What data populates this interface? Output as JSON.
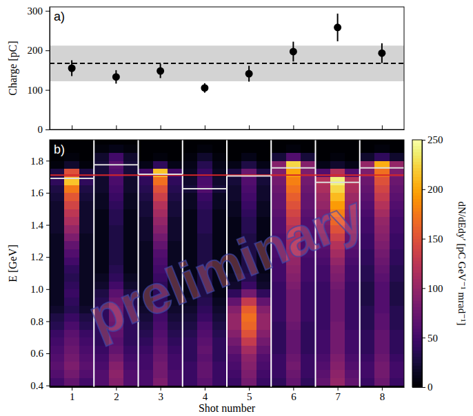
{
  "chart_data": [
    {
      "type": "scatter",
      "panel_label": "a)",
      "x": [
        1,
        2,
        3,
        4,
        5,
        6,
        7,
        8
      ],
      "values": [
        155,
        133,
        148,
        105,
        141,
        197,
        258,
        193
      ],
      "errors": [
        20,
        17,
        18,
        12,
        20,
        25,
        35,
        25
      ],
      "color": "#000000",
      "marker": "circle",
      "mean": 167,
      "band": [
        122,
        212
      ],
      "xlim": [
        0.5,
        8.5
      ],
      "xticks": [
        1,
        2,
        3,
        4,
        5,
        6,
        7,
        8
      ],
      "ylim": [
        0,
        310
      ],
      "yticks": [
        0,
        100,
        200,
        300
      ],
      "ylabel": "Charge [pC]",
      "tick_labels": "y"
    },
    {
      "type": "heatmap",
      "panel_label": "b)",
      "xlim": [
        0.5,
        8.5
      ],
      "xticks": [
        1,
        2,
        3,
        4,
        5,
        6,
        7,
        8
      ],
      "ylim": [
        0.39,
        1.93
      ],
      "yticks": [
        0.4,
        0.6,
        0.8,
        {
          "value": 1,
          "label": "1.0"
        },
        1.2,
        1.4,
        1.6,
        1.8
      ],
      "xlabel": "Shot number",
      "ylabel": "E [GeV]",
      "cells": {
        "x_edges": [
          0.5,
          0.833,
          1.167,
          1.5,
          1.833,
          2.167,
          2.5,
          2.833,
          3.167,
          3.5,
          3.833,
          4.167,
          4.5,
          4.833,
          5.167,
          5.5,
          5.833,
          6.167,
          6.5,
          6.833,
          7.167,
          7.5,
          7.833,
          8.167,
          8.5
        ],
        "y_edges": [
          0.4,
          0.45,
          0.5,
          0.55,
          0.6,
          0.65,
          0.7,
          0.75,
          0.8,
          0.85,
          0.9,
          0.95,
          1.0,
          1.05,
          1.1,
          1.15,
          1.2,
          1.25,
          1.3,
          1.35,
          1.4,
          1.45,
          1.5,
          1.55,
          1.6,
          1.65,
          1.7,
          1.75,
          1.8,
          1.85,
          1.9
        ],
        "z": [
          [
            50,
            60,
            65,
            60,
            55,
            50,
            45,
            35,
            30,
            20,
            15,
            15,
            15,
            15,
            15,
            15,
            15,
            15,
            15,
            20,
            20,
            20,
            20,
            25,
            30,
            40,
            30,
            5,
            0,
            0
          ],
          [
            70,
            80,
            85,
            80,
            75,
            70,
            65,
            55,
            45,
            35,
            40,
            45,
            40,
            35,
            40,
            50,
            60,
            70,
            85,
            100,
            115,
            125,
            140,
            155,
            175,
            215,
            150,
            20,
            5,
            0
          ],
          [
            50,
            60,
            65,
            60,
            55,
            50,
            45,
            35,
            30,
            20,
            15,
            15,
            15,
            15,
            15,
            15,
            15,
            15,
            15,
            20,
            20,
            20,
            20,
            25,
            30,
            40,
            30,
            5,
            0,
            0
          ],
          [
            60,
            60,
            55,
            50,
            45,
            40,
            40,
            40,
            40,
            40,
            35,
            30,
            20,
            15,
            10,
            10,
            10,
            10,
            10,
            10,
            10,
            10,
            15,
            15,
            20,
            20,
            25,
            25,
            20,
            5
          ],
          [
            90,
            95,
            90,
            80,
            70,
            65,
            70,
            75,
            80,
            80,
            75,
            65,
            50,
            40,
            35,
            30,
            30,
            30,
            30,
            30,
            35,
            35,
            40,
            45,
            50,
            55,
            60,
            65,
            50,
            10
          ],
          [
            60,
            60,
            55,
            50,
            45,
            40,
            40,
            40,
            40,
            40,
            35,
            30,
            20,
            15,
            10,
            10,
            10,
            10,
            10,
            10,
            10,
            10,
            15,
            15,
            20,
            20,
            25,
            25,
            20,
            5
          ],
          [
            55,
            55,
            50,
            50,
            45,
            40,
            35,
            30,
            25,
            20,
            15,
            15,
            15,
            15,
            15,
            15,
            15,
            15,
            20,
            20,
            20,
            25,
            25,
            30,
            35,
            40,
            50,
            10,
            0,
            0
          ],
          [
            85,
            80,
            80,
            75,
            70,
            65,
            60,
            55,
            50,
            45,
            40,
            40,
            40,
            45,
            50,
            55,
            60,
            70,
            80,
            90,
            100,
            110,
            120,
            135,
            150,
            170,
            215,
            40,
            5,
            0
          ],
          [
            55,
            55,
            50,
            50,
            45,
            40,
            35,
            30,
            25,
            20,
            15,
            15,
            15,
            15,
            15,
            15,
            15,
            15,
            20,
            20,
            20,
            25,
            25,
            30,
            35,
            40,
            50,
            10,
            0,
            0
          ],
          [
            45,
            45,
            45,
            40,
            40,
            40,
            35,
            30,
            25,
            20,
            15,
            10,
            10,
            10,
            10,
            10,
            10,
            10,
            10,
            10,
            10,
            10,
            15,
            15,
            25,
            20,
            15,
            10,
            5,
            0
          ],
          [
            65,
            70,
            70,
            65,
            70,
            65,
            60,
            55,
            45,
            40,
            35,
            30,
            30,
            30,
            30,
            30,
            30,
            30,
            30,
            35,
            35,
            35,
            40,
            45,
            60,
            55,
            45,
            35,
            20,
            5
          ],
          [
            45,
            45,
            45,
            40,
            40,
            40,
            35,
            30,
            25,
            20,
            15,
            10,
            10,
            10,
            10,
            10,
            10,
            10,
            10,
            10,
            10,
            10,
            15,
            15,
            25,
            20,
            15,
            10,
            5,
            0
          ],
          [
            45,
            50,
            55,
            60,
            70,
            80,
            90,
            100,
            100,
            90,
            70,
            40,
            20,
            15,
            10,
            10,
            10,
            10,
            10,
            10,
            10,
            15,
            15,
            20,
            20,
            25,
            30,
            10,
            0,
            0
          ],
          [
            80,
            85,
            90,
            95,
            110,
            130,
            150,
            165,
            170,
            160,
            130,
            80,
            45,
            35,
            30,
            30,
            30,
            30,
            30,
            35,
            35,
            40,
            45,
            50,
            55,
            60,
            75,
            30,
            10,
            0
          ],
          [
            45,
            50,
            55,
            60,
            70,
            80,
            90,
            100,
            100,
            90,
            70,
            40,
            20,
            15,
            10,
            10,
            10,
            10,
            10,
            10,
            10,
            15,
            15,
            20,
            20,
            25,
            30,
            10,
            0,
            0
          ],
          [
            40,
            45,
            45,
            45,
            40,
            40,
            40,
            40,
            45,
            45,
            45,
            45,
            45,
            50,
            50,
            50,
            55,
            55,
            55,
            60,
            60,
            65,
            70,
            70,
            75,
            80,
            85,
            90,
            25,
            0
          ],
          [
            70,
            75,
            80,
            75,
            70,
            70,
            70,
            75,
            80,
            80,
            80,
            80,
            85,
            90,
            95,
            100,
            105,
            110,
            115,
            120,
            130,
            140,
            150,
            160,
            170,
            180,
            200,
            225,
            60,
            5
          ],
          [
            40,
            45,
            45,
            45,
            40,
            40,
            40,
            40,
            45,
            45,
            45,
            45,
            45,
            50,
            50,
            50,
            55,
            55,
            55,
            60,
            60,
            65,
            70,
            70,
            75,
            80,
            85,
            90,
            25,
            0
          ],
          [
            70,
            65,
            60,
            55,
            50,
            50,
            50,
            45,
            45,
            45,
            45,
            45,
            45,
            50,
            50,
            55,
            60,
            65,
            70,
            80,
            85,
            90,
            100,
            105,
            115,
            120,
            60,
            10,
            0,
            0
          ],
          [
            100,
            95,
            90,
            85,
            80,
            80,
            80,
            80,
            75,
            75,
            75,
            75,
            80,
            85,
            90,
            100,
            110,
            120,
            135,
            150,
            165,
            180,
            195,
            210,
            225,
            240,
            120,
            20,
            5,
            0
          ],
          [
            70,
            65,
            60,
            55,
            50,
            50,
            50,
            45,
            45,
            45,
            45,
            45,
            45,
            50,
            50,
            55,
            60,
            65,
            70,
            80,
            85,
            90,
            100,
            105,
            115,
            120,
            60,
            10,
            0,
            0
          ],
          [
            45,
            50,
            50,
            45,
            40,
            40,
            40,
            35,
            35,
            35,
            30,
            30,
            30,
            35,
            35,
            40,
            40,
            45,
            45,
            50,
            50,
            55,
            60,
            65,
            70,
            75,
            85,
            100,
            20,
            0
          ],
          [
            75,
            80,
            80,
            75,
            70,
            70,
            70,
            65,
            65,
            60,
            60,
            60,
            60,
            65,
            70,
            75,
            80,
            85,
            90,
            95,
            100,
            110,
            120,
            130,
            140,
            150,
            170,
            205,
            40,
            5
          ],
          [
            45,
            50,
            50,
            45,
            40,
            40,
            40,
            35,
            35,
            35,
            30,
            30,
            30,
            35,
            35,
            40,
            40,
            45,
            45,
            50,
            50,
            55,
            60,
            65,
            70,
            75,
            85,
            100,
            20,
            0
          ]
        ]
      },
      "colorbar": {
        "lim": [
          0,
          250
        ],
        "ticks": [
          0,
          50,
          100,
          150,
          200,
          250
        ],
        "label": "dN/dEdy′ [pC GeV⁻¹ mrad⁻¹]"
      },
      "separators": [
        1.5,
        2.5,
        3.5,
        4.5,
        5.5,
        6.5,
        7.5
      ],
      "peak_energies": {
        "x": [
          1,
          2,
          3,
          4,
          5,
          6,
          7,
          8
        ],
        "values": [
          1.69,
          1.775,
          1.715,
          1.625,
          1.705,
          1.755,
          1.665,
          1.755
        ]
      },
      "mean_peak_energy": 1.71,
      "annotation": "preliminary"
    }
  ]
}
